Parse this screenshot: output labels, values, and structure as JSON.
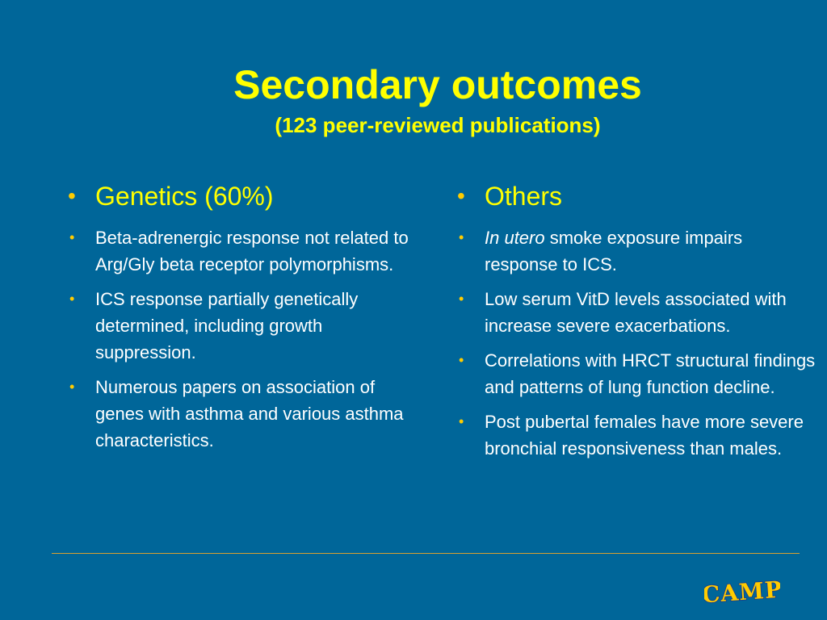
{
  "slide": {
    "title": "Secondary outcomes",
    "subtitle": "(123 peer-reviewed publications)"
  },
  "left_column": {
    "heading": "Genetics (60%)",
    "items": [
      "Beta-adrenergic response not related to Arg/Gly beta receptor polymorphisms.",
      "ICS response partially genetically determined, including growth suppression.",
      "Numerous papers on association of genes with asthma and various asthma characteristics."
    ]
  },
  "right_column": {
    "heading": "Others",
    "items": [
      {
        "italic": "In utero",
        "rest": " smoke exposure impairs response to ICS."
      },
      {
        "italic": "",
        "rest": "Low serum VitD levels associated with increase severe exacerbations."
      },
      {
        "italic": "",
        "rest": "Correlations with HRCT structural findings and patterns of lung function decline."
      },
      {
        "italic": "",
        "rest": "Post pubertal females have more severe bronchial responsiveness than males."
      }
    ]
  },
  "logo": {
    "text": "CAMP"
  },
  "colors": {
    "background": "#006699",
    "title": "#ffff00",
    "body_text": "#ffffff",
    "bullet": "#ffcc00",
    "rule": "#d9a030",
    "logo_fill": "#ffcc00",
    "logo_outline": "#1a3a8a"
  },
  "bullet_glyph": "•"
}
